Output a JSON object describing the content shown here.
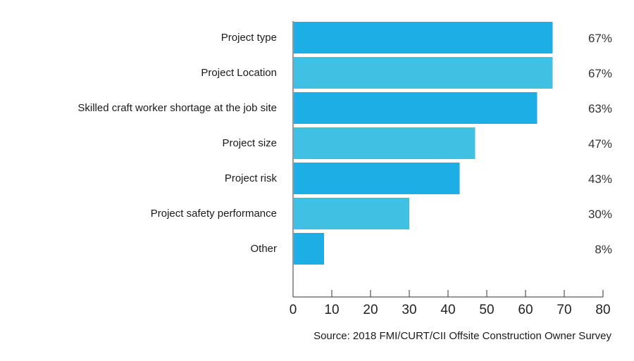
{
  "chart_data": {
    "type": "bar",
    "orientation": "horizontal",
    "categories": [
      "Project type",
      "Project Location",
      "Skilled craft worker shortage at the job site",
      "Project size",
      "Project risk",
      "Project safety performance",
      "Other"
    ],
    "values": [
      67,
      67,
      63,
      47,
      43,
      30,
      8
    ],
    "value_labels": [
      "67%",
      "67%",
      "63%",
      "47%",
      "43%",
      "30%",
      "8%"
    ],
    "xlim": [
      0,
      80
    ],
    "xticks": [
      0,
      10,
      20,
      30,
      40,
      50,
      60,
      70,
      80
    ],
    "grid": false,
    "colors": [
      "#1eaee6",
      "#40c0e2"
    ]
  },
  "source": "Source: 2018 FMI/CURT/CII Offsite Construction Owner Survey"
}
